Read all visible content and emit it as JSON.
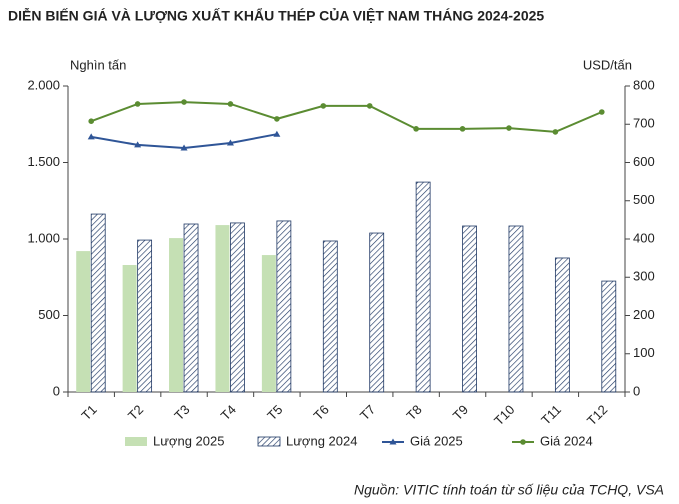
{
  "chart_data": {
    "type": "bar-line",
    "title": "DIỄN BIẾN GIÁ VÀ LƯỢNG XUẤT KHẨU THÉP CỦA VIỆT NAM THÁNG 2024-2025",
    "y_label": "Nghìn tấn",
    "y2_label": "USD/tấn",
    "source": "Nguồn: VITIC tính toán từ số liệu của TCHQ, VSA",
    "categories": [
      "T1",
      "T2",
      "T3",
      "T4",
      "T5",
      "T6",
      "T7",
      "T8",
      "T9",
      "T10",
      "T11",
      "T12"
    ],
    "ylim": [
      0,
      2000
    ],
    "yticks": [
      0,
      500,
      {
        "value": 1000,
        "label": "1.000"
      },
      {
        "value": 1500,
        "label": "1.500"
      },
      {
        "value": 2000,
        "label": "2.000"
      }
    ],
    "y2lim": [
      0,
      800
    ],
    "y2ticks": [
      0,
      100,
      200,
      300,
      400,
      500,
      600,
      700,
      800
    ],
    "series": [
      {
        "name": "Lượng 2025",
        "kind": "bar",
        "color": "#c5e0b4",
        "values": [
          921,
          830,
          1006,
          1091,
          895,
          null,
          null,
          null,
          null,
          null,
          null,
          null
        ]
      },
      {
        "name": "Lượng 2024",
        "kind": "bar",
        "hatch": true,
        "color": "#1f3864",
        "values": [
          1163,
          993,
          1098,
          1105,
          1118,
          987,
          1039,
          1372,
          1085,
          1085,
          876,
          725
        ]
      },
      {
        "name": "Giá 2025",
        "kind": "line",
        "marker": "triangle",
        "axis": "y2",
        "color": "#2f5597",
        "values": [
          667,
          646,
          638,
          651,
          674,
          null,
          null,
          null,
          null,
          null,
          null,
          null
        ]
      },
      {
        "name": "Giá 2024",
        "kind": "line",
        "marker": "circle",
        "axis": "y2",
        "color": "#5b8c32",
        "values": [
          708,
          753,
          758,
          753,
          714,
          748,
          748,
          688,
          688,
          690,
          680,
          732
        ]
      }
    ]
  }
}
